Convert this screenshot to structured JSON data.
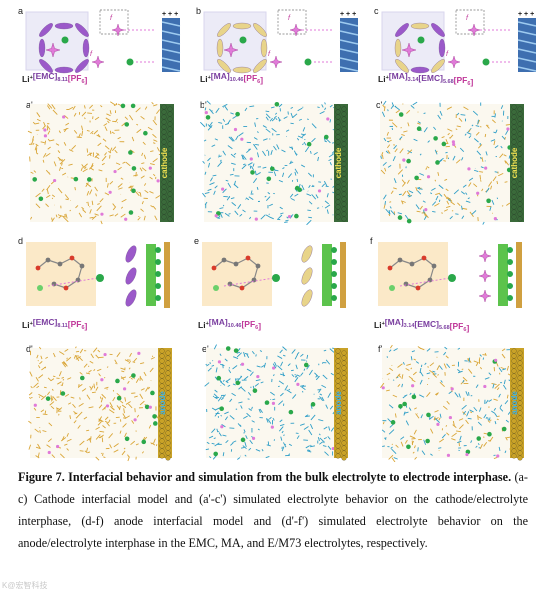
{
  "panels": {
    "top": [
      {
        "label": "a",
        "solvent": "[EMC]",
        "solvent_sub": "8.11",
        "co_solvent": "",
        "co_sub": "",
        "salt": "[PF",
        "salt_sub": "6",
        "salt_end": "]"
      },
      {
        "label": "b",
        "solvent": "[MA]",
        "solvent_sub": "10.46",
        "co_solvent": "",
        "co_sub": "",
        "salt": "[PF",
        "salt_sub": "6",
        "salt_end": "]"
      },
      {
        "label": "c",
        "solvent": "[MA]",
        "solvent_sub": "3.14",
        "co_solvent": "[EMC]",
        "co_sub": "5.68",
        "salt": "[PF",
        "salt_sub": "6",
        "salt_end": "]"
      }
    ],
    "sim_top": [
      {
        "label": "a'",
        "electrode": "cathode"
      },
      {
        "label": "b'",
        "electrode": "cathode"
      },
      {
        "label": "c'",
        "electrode": "cathode"
      }
    ],
    "bottom": [
      {
        "label": "d",
        "solvent": "[EMC]",
        "solvent_sub": "8.11",
        "co_solvent": "",
        "co_sub": "",
        "salt": "[PF",
        "salt_sub": "6",
        "salt_end": "]"
      },
      {
        "label": "e",
        "solvent": "[MA]",
        "solvent_sub": "10.46",
        "co_solvent": "",
        "co_sub": "",
        "salt": "[PF",
        "salt_sub": "6",
        "salt_end": "]"
      },
      {
        "label": "f",
        "solvent": "[MA]",
        "solvent_sub": "3.14",
        "co_solvent": "[EMC]",
        "co_sub": "5.68",
        "salt": "[PF",
        "salt_sub": "6",
        "salt_end": "]"
      }
    ],
    "sim_bottom": [
      {
        "label": "d'",
        "electrode": "anode"
      },
      {
        "label": "e'",
        "electrode": "anode"
      },
      {
        "label": "f'",
        "electrode": "anode"
      }
    ],
    "li": "Li",
    "li_sup": "+",
    "f_sym": "f",
    "f_sub1": "1",
    "f_sub2": "2",
    "plus_signs": "+ + +"
  },
  "caption": {
    "title": "Figure 7. Interfacial behavior and simulation from the bulk electrolyte to electrode interphase.",
    "body": " (a-c) Cathode interfacial model and (a'-c') simulated electrolyte behavior on the cathode/electrolyte interphase, (d-f) anode interfacial model and (d'-f') simulated electrolyte behavior on the anode/electrolyte interphase in the EMC, MA, and E/M73 electrolytes, respectively."
  },
  "watermark": "K@宏智科技",
  "colors": {
    "emc": "#9b59c9",
    "ma": "#e8d48a",
    "pf6": "#e07ad8",
    "li": "#2aa84a",
    "cathode": "#3a6a3a",
    "anode": "#c9a227",
    "sim_emc": "#d9a536",
    "sim_ma": "#2e9ec7"
  }
}
